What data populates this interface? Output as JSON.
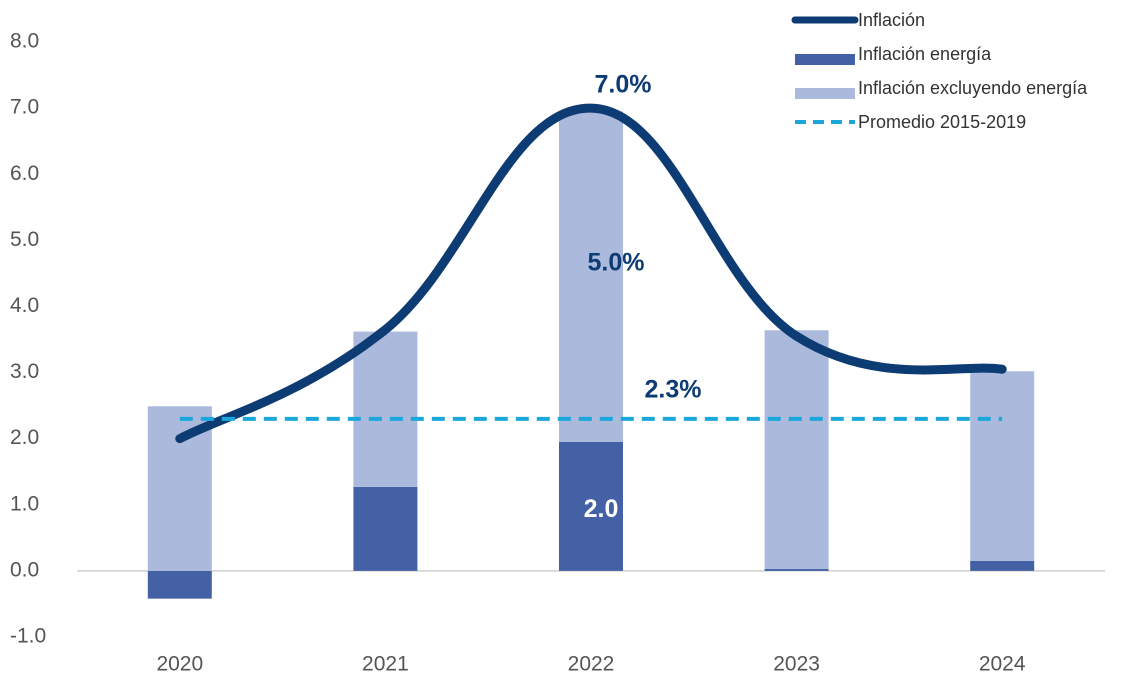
{
  "chart_data": {
    "type": "combo",
    "categories": [
      "2020",
      "2021",
      "2022",
      "2023",
      "2024"
    ],
    "ylim": [
      -1,
      8
    ],
    "yticks": [
      {
        "value": -1,
        "label": "-1.0"
      },
      {
        "value": 0,
        "label": "0.0"
      },
      {
        "value": 1,
        "label": "1.0"
      },
      {
        "value": 2,
        "label": "2.0"
      },
      {
        "value": 3,
        "label": "3.0"
      },
      {
        "value": 4,
        "label": "4.0"
      },
      {
        "value": 5,
        "label": "5.0"
      },
      {
        "value": 6,
        "label": "6.0"
      },
      {
        "value": 7,
        "label": "7.0"
      },
      {
        "value": 8,
        "label": "8.0"
      }
    ],
    "legend": "top-right",
    "series": [
      {
        "name": "Inflación",
        "type": "line",
        "color": "#0d3b73",
        "values": [
          2.0,
          3.65,
          7.0,
          3.55,
          3.05
        ],
        "value_labels": [
          null,
          null,
          "7.0%",
          null,
          null
        ]
      },
      {
        "name": "Inflación energía",
        "type": "bar",
        "color": "#4361a4",
        "values": [
          -0.42,
          1.27,
          1.95,
          0.03,
          0.15
        ],
        "value_labels": [
          null,
          null,
          "2.0",
          null,
          null
        ]
      },
      {
        "name": "Inflación excluyendo energía",
        "type": "bar",
        "color": "#aab9dc",
        "values": [
          2.49,
          2.35,
          5.0,
          3.61,
          2.87
        ],
        "value_labels": [
          null,
          null,
          "5.0%",
          null,
          null
        ]
      },
      {
        "name": "Promedio 2015-2019",
        "type": "line",
        "dashed": true,
        "color": "#1aa7dc",
        "values": [
          2.3,
          2.3,
          2.3,
          2.3,
          2.3
        ],
        "value_labels": [
          null,
          null,
          "2.3%",
          null,
          null
        ]
      }
    ]
  }
}
